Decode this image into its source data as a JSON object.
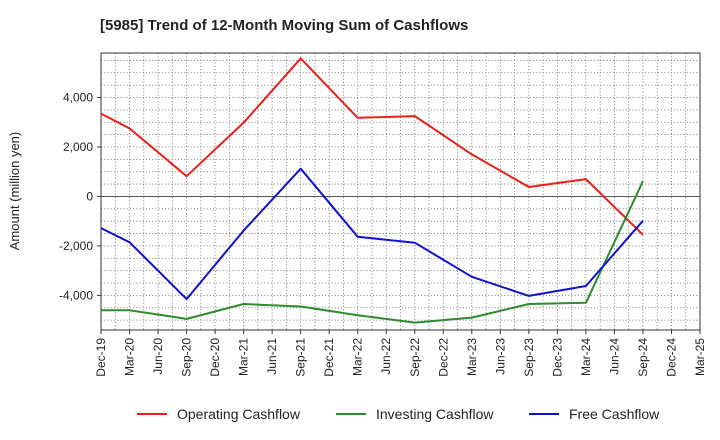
{
  "chart_data": {
    "type": "line",
    "title": "[5985]  Trend of 12-Month Moving Sum of Cashflows",
    "xlabel": "",
    "ylabel": "Amount (million yen)",
    "x": [
      "Dec-19",
      "Mar-20",
      "Jun-20",
      "Sep-20",
      "Dec-20",
      "Mar-21",
      "Jun-21",
      "Sep-21",
      "Dec-21",
      "Mar-22",
      "Jun-22",
      "Sep-22",
      "Dec-22",
      "Mar-23",
      "Jun-23",
      "Sep-23",
      "Dec-23",
      "Mar-24",
      "Jun-24",
      "Sep-24",
      "Dec-24",
      "Mar-25"
    ],
    "ylim": [
      -5400,
      5800
    ],
    "yticks": [
      -4000,
      -2000,
      0,
      2000,
      4000
    ],
    "ytick_labels": [
      "-4,000",
      "-2,000",
      "0",
      "2,000",
      "4,000"
    ],
    "grid": true,
    "legend_position": "bottom",
    "series": [
      {
        "name": "Operating Cashflow",
        "color": "#e8201a",
        "values": [
          3350,
          2750,
          null,
          820,
          null,
          2980,
          null,
          5580,
          null,
          3180,
          null,
          3250,
          null,
          1700,
          null,
          380,
          null,
          700,
          null,
          -1550,
          null,
          null
        ]
      },
      {
        "name": "Investing Cashflow",
        "color": "#2e8b2e",
        "values": [
          -4600,
          -4600,
          null,
          -4950,
          null,
          -4350,
          null,
          -4450,
          null,
          -4800,
          null,
          -5100,
          null,
          -4900,
          null,
          -4350,
          null,
          -4300,
          null,
          620,
          null,
          null
        ]
      },
      {
        "name": "Free Cashflow",
        "color": "#1111cc",
        "values": [
          -1280,
          -1850,
          null,
          -4150,
          null,
          -1380,
          null,
          1120,
          null,
          -1630,
          null,
          -1870,
          null,
          -3250,
          null,
          -4020,
          null,
          -3620,
          null,
          -980,
          null,
          null
        ]
      }
    ]
  }
}
